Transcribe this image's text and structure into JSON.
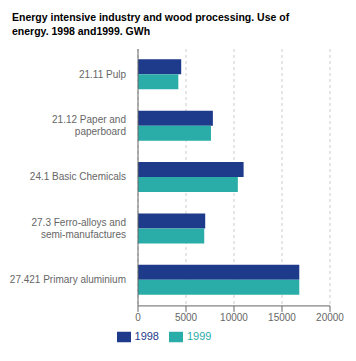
{
  "chart_data": {
    "type": "bar",
    "orientation": "horizontal",
    "title": "Energy intensive industry and wood processing. Use of\nenergy. 1998 and1999. GWh",
    "categories": [
      "21.11 Pulp",
      "21.12 Paper and\npaperboard",
      "24.1 Basic Chemicals",
      "27.3 Ferro-alloys and\nsemi-manufactures",
      "27.421 Primary aluminium"
    ],
    "series": [
      {
        "name": "1998",
        "color": "#1e3a8a",
        "values": [
          4500,
          7800,
          11000,
          7000,
          16800
        ]
      },
      {
        "name": "1999",
        "color": "#2aada8",
        "values": [
          4200,
          7600,
          10400,
          6900,
          16800
        ]
      }
    ],
    "xlim": [
      0,
      20000
    ],
    "xticks": [
      0,
      5000,
      10000,
      15000,
      20000
    ],
    "grid": true,
    "legend": "bottom"
  }
}
